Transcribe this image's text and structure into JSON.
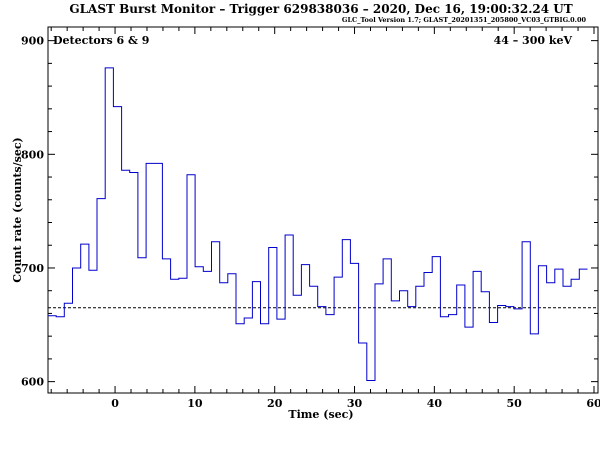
{
  "chart_data": {
    "type": "line",
    "style": "step",
    "title": "GLAST Burst Monitor  –  Trigger 629838036  –  2020, Dec 16, 19:00:32.24 UT",
    "subtitle": "GLC_Tool Version 1.7; GLAST_20201351_205800_VC03_GTBIG.0.00",
    "detectors_label": "Detectors 6 & 9",
    "energy_label": "44 – 300 keV",
    "xlabel": "Time (sec)",
    "ylabel": "Count rate (counts/sec)",
    "xlim": [
      -8.4,
      60.5
    ],
    "ylim": [
      590,
      912
    ],
    "xticks": [
      0,
      10,
      20,
      30,
      40,
      50,
      60
    ],
    "yticks": [
      600,
      700,
      800,
      900
    ],
    "grid": false,
    "background_level": 665,
    "line_color": "#0000cc",
    "bin_width": 1.024,
    "bin_start": -8.4,
    "values": [
      658,
      657,
      669,
      700,
      721,
      698,
      761,
      876,
      842,
      786,
      784,
      709,
      792,
      792,
      708,
      690,
      691,
      782,
      701,
      697,
      723,
      687,
      695,
      651,
      656,
      688,
      651,
      718,
      655,
      729,
      676,
      703,
      684,
      666,
      659,
      692,
      725,
      704,
      634,
      601,
      686,
      708,
      671,
      680,
      666,
      684,
      696,
      710,
      657,
      659,
      685,
      648,
      697,
      679,
      652,
      667,
      666,
      664,
      723,
      642,
      702,
      687,
      699,
      684,
      690,
      699
    ]
  }
}
